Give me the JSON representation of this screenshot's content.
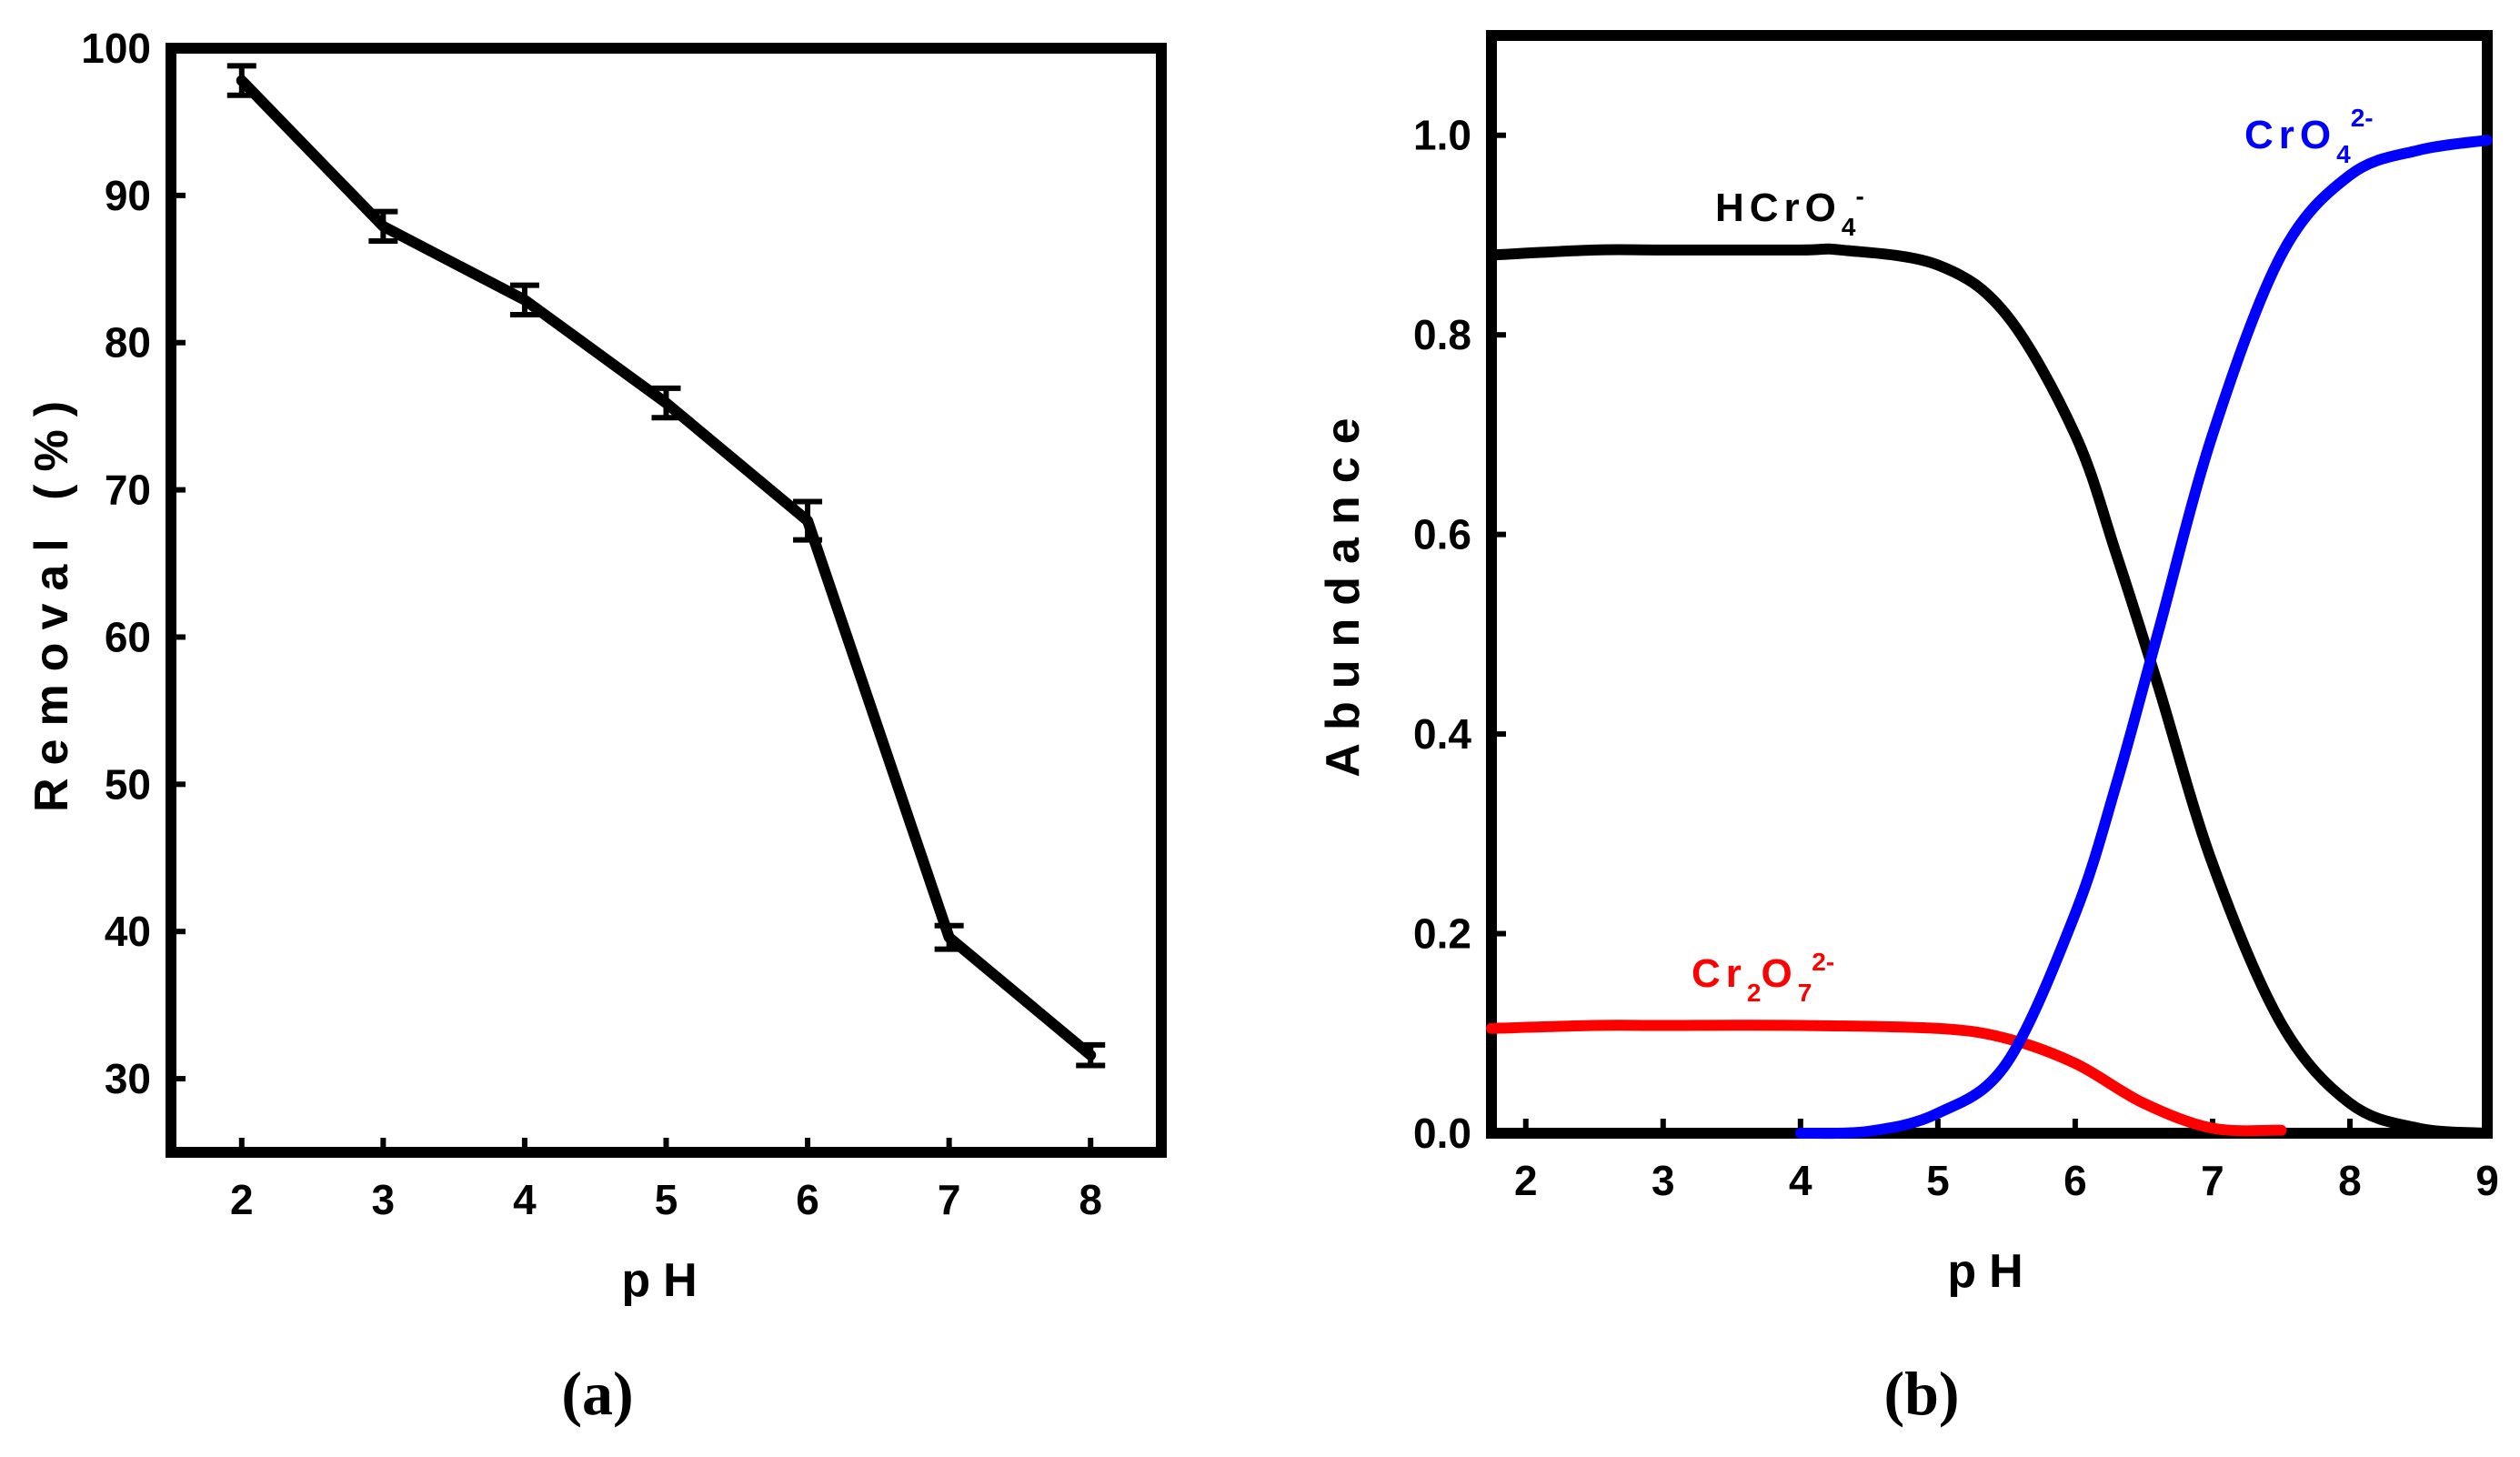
{
  "chart_data": [
    {
      "type": "line",
      "panel_label": "(a)",
      "title": "",
      "xlabel": "pH",
      "ylabel": "Removal (%)",
      "xlim": [
        1.5,
        8.5
      ],
      "ylim": [
        25,
        100
      ],
      "xticks": [
        2,
        3,
        4,
        5,
        6,
        7,
        8
      ],
      "yticks": [
        30,
        40,
        50,
        60,
        70,
        80,
        90,
        100
      ],
      "series": [
        {
          "name": "Removal",
          "color": "#000000",
          "x": [
            2,
            3,
            4,
            5,
            6,
            7,
            8
          ],
          "y": [
            97.8,
            87.9,
            82.9,
            75.9,
            67.9,
            39.6,
            31.6
          ],
          "error": [
            1.0,
            1.0,
            1.0,
            1.0,
            1.3,
            0.8,
            0.7
          ]
        }
      ]
    },
    {
      "type": "line",
      "panel_label": "(b)",
      "title": "",
      "xlabel": "pH",
      "ylabel": "Abundance",
      "xlim": [
        1.75,
        9
      ],
      "ylim": [
        0,
        1.1
      ],
      "xticks": [
        2,
        3,
        4,
        5,
        6,
        7,
        8,
        9
      ],
      "yticks": [
        0.0,
        0.2,
        0.4,
        0.6,
        0.8,
        1.0
      ],
      "series": [
        {
          "name": "HCrO4-",
          "label_main": "HCrO",
          "label_sub": "4",
          "label_sup": "-",
          "color": "#000000",
          "x": [
            1.75,
            2.5,
            3.0,
            4.0,
            4.3,
            5.0,
            5.5,
            6.0,
            6.3,
            6.6,
            7.0,
            7.5,
            8.0,
            8.5,
            9.0
          ],
          "y": [
            0.88,
            0.885,
            0.885,
            0.885,
            0.885,
            0.87,
            0.82,
            0.7,
            0.58,
            0.45,
            0.27,
            0.11,
            0.03,
            0.005,
            0.0
          ]
        },
        {
          "name": "Cr2O72-",
          "label_main": "Cr",
          "label_sub": "2",
          "label_mid": "O",
          "label_sub2": "7",
          "label_sup": "2-",
          "color": "#ff0000",
          "x": [
            1.75,
            2.5,
            3.0,
            4.0,
            5.0,
            5.5,
            6.0,
            6.5,
            7.0,
            7.5
          ],
          "y": [
            0.105,
            0.108,
            0.108,
            0.108,
            0.105,
            0.095,
            0.07,
            0.03,
            0.005,
            0.003
          ]
        },
        {
          "name": "CrO42-",
          "label_main": "CrO",
          "label_sub": "4",
          "label_sup": "2-",
          "color": "#0000ff",
          "x": [
            4.0,
            4.5,
            5.0,
            5.5,
            6.0,
            6.3,
            6.6,
            7.0,
            7.5,
            8.0,
            8.5,
            9.0
          ],
          "y": [
            0.0,
            0.002,
            0.02,
            0.07,
            0.22,
            0.35,
            0.5,
            0.7,
            0.88,
            0.96,
            0.985,
            0.995
          ]
        }
      ]
    }
  ]
}
